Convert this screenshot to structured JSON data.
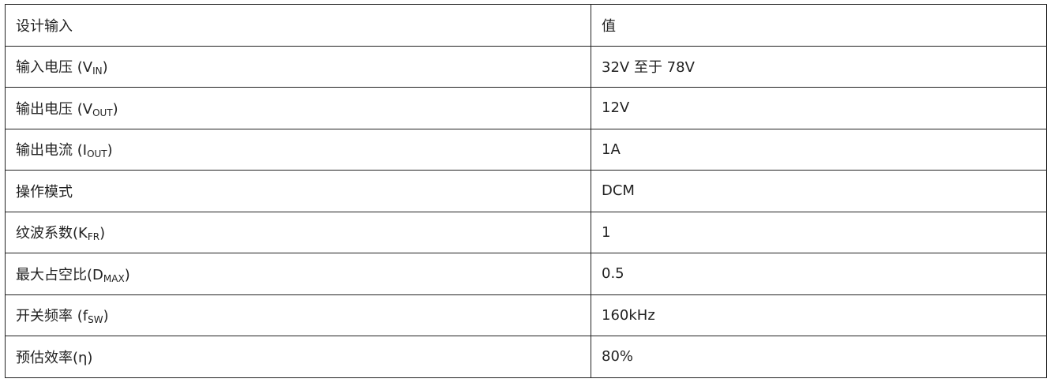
{
  "table": {
    "header": [
      "设计输入",
      "值"
    ],
    "rows": [
      {
        "label": "输入电压 (V",
        "sub": "IN",
        "suffix": ")",
        "value": "32V 至于 78V"
      },
      {
        "label": "输出电压 (V",
        "sub": "OUT",
        "suffix": ")",
        "value": "12V"
      },
      {
        "label": "输出电流 (I",
        "sub": "OUT",
        "suffix": ")",
        "value": "1A"
      },
      {
        "label": "操作模式",
        "sub": "",
        "suffix": "",
        "value": "DCM"
      },
      {
        "label": "纹波系数(K",
        "sub": "FR",
        "suffix": ")",
        "value": "1"
      },
      {
        "label": "最大占空比(D",
        "sub": "MAX",
        "suffix": ")",
        "value": "0.5"
      },
      {
        "label": "开关频率 (f",
        "sub": "SW",
        "suffix": ")",
        "value": "160kHz"
      },
      {
        "label": "预估效率(η)",
        "sub": "",
        "suffix": "",
        "value": "80%"
      }
    ]
  }
}
